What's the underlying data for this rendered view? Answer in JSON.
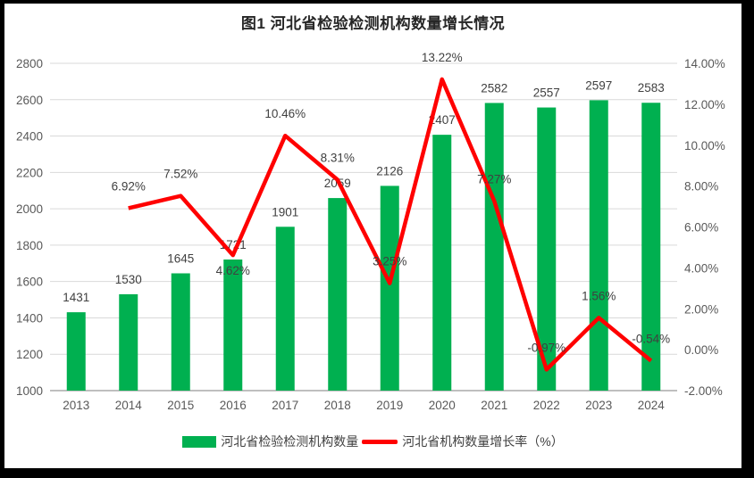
{
  "window": {
    "frame_color": "#000000",
    "card_color": "#ffffff"
  },
  "chart_data": {
    "type": "bar",
    "subtype": "combo-bar-line",
    "title": "图1 河北省检验检测机构数量增长情况",
    "categories": [
      "2013",
      "2014",
      "2015",
      "2016",
      "2017",
      "2018",
      "2019",
      "2020",
      "2021",
      "2022",
      "2023",
      "2024"
    ],
    "series": [
      {
        "name": "河北省检验检测机构数量",
        "type": "bar",
        "axis": "left",
        "color": "#00B050",
        "values": [
          1431,
          1530,
          1645,
          1721,
          1901,
          2059,
          2126,
          2407,
          2582,
          2557,
          2597,
          2583
        ],
        "labels": [
          "1431",
          "1530",
          "1645",
          "1721",
          "1901",
          "2059",
          "2126",
          "2407",
          "2582",
          "2557",
          "2597",
          "2583"
        ]
      },
      {
        "name": "河北省机构数量增长率（%）",
        "type": "line",
        "axis": "right",
        "color": "#FF0000",
        "values": [
          null,
          6.92,
          7.52,
          4.62,
          10.46,
          8.31,
          3.25,
          13.22,
          7.27,
          -0.97,
          1.56,
          -0.54
        ],
        "labels": [
          "",
          "6.92%",
          "7.52%",
          "4.62%",
          "10.46%",
          "8.31%",
          "3.25%",
          "13.22%",
          "7.27%",
          "-0.97%",
          "1.56%",
          "-0.54%"
        ],
        "label_placement": [
          "",
          "above",
          "above",
          "below",
          "above",
          "above",
          "above",
          "above",
          "above",
          "above",
          "above",
          "above"
        ]
      }
    ],
    "left_axis": {
      "min": 1000,
      "max": 2800,
      "step": 200,
      "tick_labels": [
        "1000",
        "1200",
        "1400",
        "1600",
        "1800",
        "2000",
        "2200",
        "2400",
        "2600",
        "2800"
      ]
    },
    "right_axis": {
      "min": -2,
      "max": 14,
      "step": 2,
      "tick_labels": [
        "-2.00%",
        "0.00%",
        "2.00%",
        "4.00%",
        "6.00%",
        "8.00%",
        "10.00%",
        "12.00%",
        "14.00%"
      ]
    },
    "grid": true,
    "gridline_color": "#D9D9D9",
    "baseline_color": "#BFBFBF",
    "tick_label_color": "#595959",
    "data_label_color": "#404040",
    "legend_position": "bottom"
  }
}
